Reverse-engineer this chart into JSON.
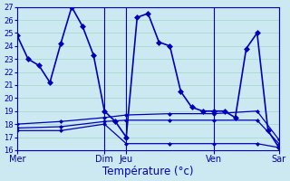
{
  "title": "Température (°c)",
  "bg_color": "#cce8f0",
  "grid_color": "#a8d8cc",
  "line_color": "#0000bb",
  "marker": "D",
  "ylim": [
    16,
    27
  ],
  "yticks": [
    16,
    17,
    18,
    19,
    20,
    21,
    22,
    23,
    24,
    25,
    26,
    27
  ],
  "day_labels": [
    "Mer",
    "Dim",
    "Jeu",
    "Ven",
    "Sar"
  ],
  "day_x": [
    0,
    96,
    120,
    216,
    288
  ],
  "xlim": [
    0,
    288
  ],
  "series": [
    {
      "x": [
        0,
        12,
        24,
        36,
        48,
        60,
        72,
        84,
        96,
        108,
        120,
        132,
        144,
        156,
        168,
        180,
        192,
        204,
        216,
        228,
        240,
        252,
        264,
        276,
        288
      ],
      "y": [
        24.8,
        23.0,
        22.5,
        21.2,
        24.2,
        27.0,
        25.5,
        23.3,
        19.0,
        18.2,
        17.0,
        26.2,
        26.5,
        24.3,
        24.0,
        20.5,
        19.3,
        19.0,
        19.0,
        19.0,
        18.5,
        23.8,
        25.0,
        17.5,
        16.2
      ],
      "lw": 1.2,
      "ms": 3
    },
    {
      "x": [
        0,
        48,
        96,
        120,
        168,
        216,
        264,
        288
      ],
      "y": [
        17.5,
        17.5,
        18.0,
        16.5,
        16.5,
        16.5,
        16.5,
        16.2
      ],
      "lw": 0.9,
      "ms": 2
    },
    {
      "x": [
        0,
        48,
        96,
        120,
        168,
        216,
        264,
        288
      ],
      "y": [
        17.7,
        17.8,
        18.2,
        18.3,
        18.3,
        18.3,
        18.3,
        16.5
      ],
      "lw": 0.9,
      "ms": 2
    },
    {
      "x": [
        0,
        48,
        96,
        120,
        168,
        216,
        264,
        288
      ],
      "y": [
        18.0,
        18.2,
        18.5,
        18.7,
        18.8,
        18.8,
        19.0,
        16.8
      ],
      "lw": 0.9,
      "ms": 2
    }
  ]
}
